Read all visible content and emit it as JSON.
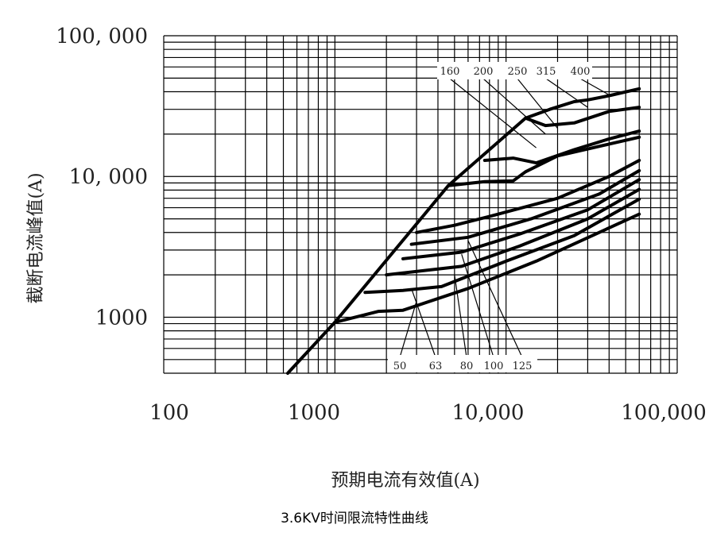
{
  "caption": "3.6KV时间限流特性曲线",
  "chart_data": {
    "type": "line",
    "title": "",
    "xlabel": "预期电流有效值(A)",
    "ylabel": "截断电流峰值(A)",
    "xscale": "log",
    "yscale": "log",
    "xlim": [
      100,
      100000
    ],
    "ylim": [
      400,
      100000
    ],
    "x_ticks": [
      {
        "value": 100,
        "label": "100"
      },
      {
        "value": 1000,
        "label": "1000"
      },
      {
        "value": 10000,
        "label": "10,000"
      },
      {
        "value": 100000,
        "label": "100,000"
      }
    ],
    "y_ticks": [
      {
        "value": 1000,
        "label": "1000"
      },
      {
        "value": 10000,
        "label": "10, 000"
      },
      {
        "value": 100000,
        "label": "100, 000"
      }
    ],
    "grid": true,
    "envelope": [
      [
        530,
        400
      ],
      [
        1000,
        920
      ],
      [
        4600,
        8600
      ],
      [
        13000,
        26000
      ]
    ],
    "series": [
      {
        "name": "50",
        "label_pos": "bottom",
        "anchor": [
          3000,
          1300
        ],
        "points": [
          [
            1000,
            920
          ],
          [
            1800,
            1100
          ],
          [
            2500,
            1120
          ],
          [
            6000,
            1600
          ],
          [
            15000,
            2500
          ],
          [
            60000,
            5400
          ]
        ]
      },
      {
        "name": "63",
        "label_pos": "bottom",
        "anchor": [
          2800,
          1600
        ],
        "points": [
          [
            1500,
            1500
          ],
          [
            2500,
            1550
          ],
          [
            4200,
            1650
          ],
          [
            10000,
            2500
          ],
          [
            25000,
            3800
          ],
          [
            60000,
            6900
          ]
        ]
      },
      {
        "name": "80",
        "label_pos": "bottom",
        "anchor": [
          5000,
          2000
        ],
        "points": [
          [
            2000,
            2000
          ],
          [
            5500,
            2300
          ],
          [
            12000,
            3200
          ],
          [
            30000,
            5000
          ],
          [
            60000,
            8100
          ]
        ]
      },
      {
        "name": "100",
        "label_pos": "bottom",
        "anchor": [
          5500,
          2800
        ],
        "points": [
          [
            2500,
            2600
          ],
          [
            5500,
            2900
          ],
          [
            12000,
            3900
          ],
          [
            30000,
            5800
          ],
          [
            60000,
            9500
          ]
        ]
      },
      {
        "name": "125",
        "label_pos": "bottom",
        "anchor": [
          6000,
          3500
        ],
        "points": [
          [
            2800,
            3300
          ],
          [
            6000,
            3700
          ],
          [
            14000,
            5000
          ],
          [
            35000,
            7500
          ],
          [
            60000,
            11000
          ]
        ]
      },
      {
        "name": "160",
        "label_pos": "top",
        "anchor": [
          15000,
          16000
        ],
        "points": [
          [
            3000,
            4000
          ],
          [
            5000,
            4500
          ],
          [
            8000,
            5200
          ],
          [
            20000,
            7000
          ],
          [
            40000,
            10000
          ],
          [
            60000,
            13000
          ]
        ]
      },
      {
        "name": "200",
        "label_pos": "top",
        "anchor": [
          17000,
          20000
        ],
        "points": [
          [
            4600,
            8600
          ],
          [
            7500,
            9200
          ],
          [
            11000,
            9300
          ],
          [
            13000,
            10800
          ],
          [
            20000,
            14000
          ],
          [
            40000,
            17000
          ],
          [
            60000,
            19000
          ]
        ]
      },
      {
        "name": "250",
        "label_pos": "top",
        "anchor": [
          20000,
          22000
        ],
        "points": [
          [
            7500,
            13000
          ],
          [
            11000,
            13500
          ],
          [
            15000,
            12500
          ],
          [
            25000,
            15500
          ],
          [
            40000,
            18500
          ],
          [
            60000,
            21000
          ]
        ]
      },
      {
        "name": "315",
        "label_pos": "top",
        "anchor": [
          30000,
          31000
        ],
        "points": [
          [
            13000,
            26000
          ],
          [
            17000,
            23000
          ],
          [
            25000,
            24000
          ],
          [
            40000,
            29000
          ],
          [
            60000,
            31000
          ]
        ]
      },
      {
        "name": "400",
        "label_pos": "top",
        "anchor": [
          40000,
          38000
        ],
        "points": [
          [
            13000,
            26000
          ],
          [
            18000,
            30000
          ],
          [
            25000,
            34000
          ],
          [
            30000,
            35000
          ],
          [
            40000,
            37500
          ],
          [
            60000,
            42000
          ]
        ]
      }
    ]
  }
}
